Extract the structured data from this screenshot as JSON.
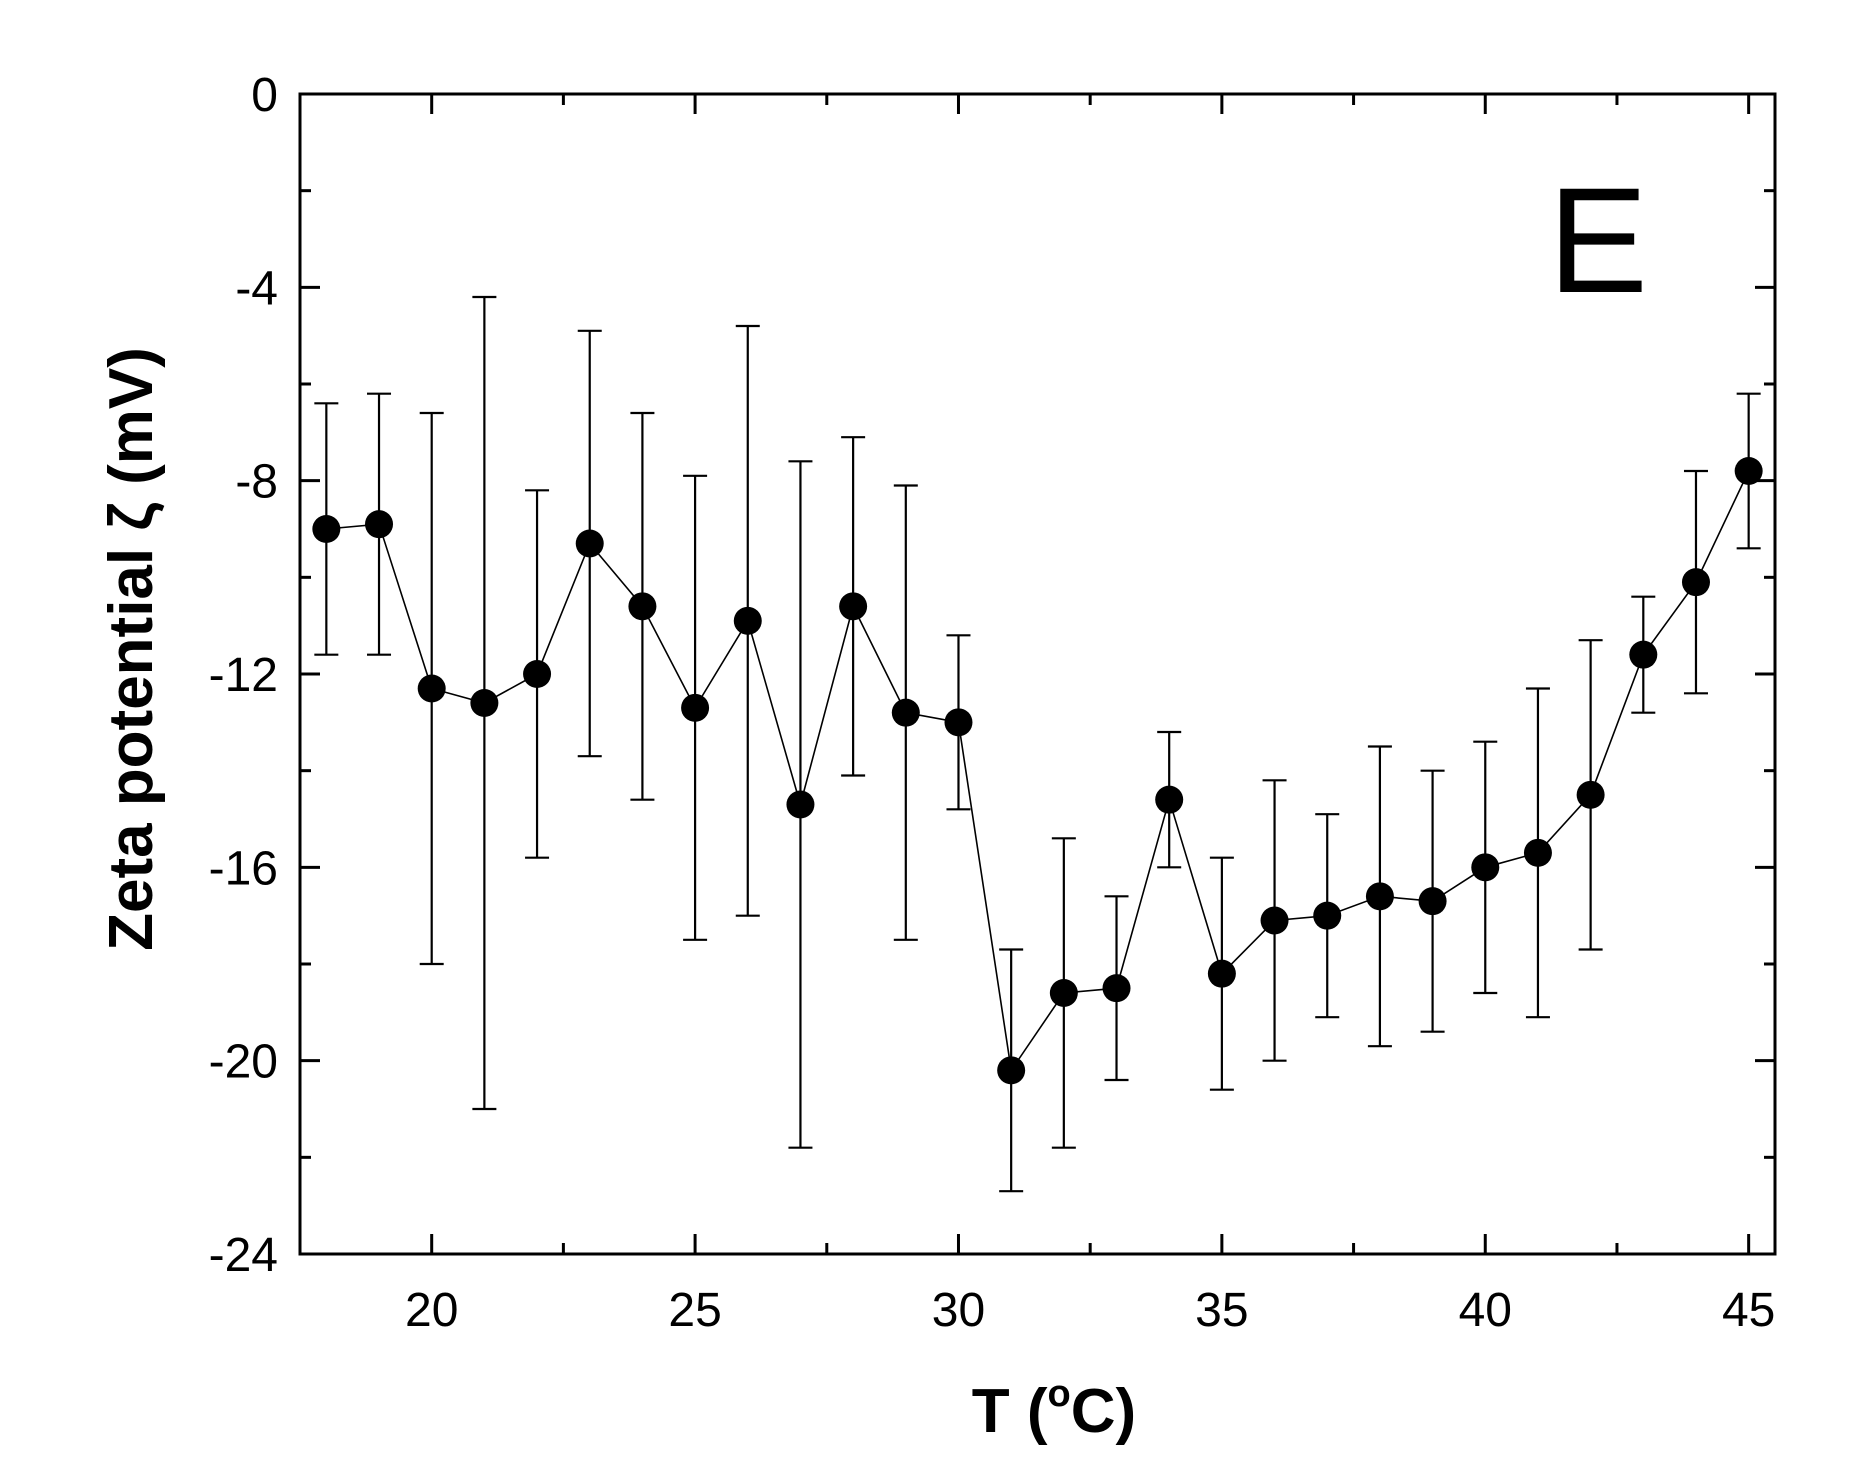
{
  "chart_data": {
    "type": "scatter",
    "panel_label": "E",
    "xlabel": "T (°C)",
    "xlabel_parts": {
      "main": "T (",
      "superscript": "o",
      "unit": "C)"
    },
    "ylabel": "Zeta potential ζ (mV)",
    "xlim": [
      17.5,
      45.5
    ],
    "ylim": [
      -24,
      0
    ],
    "x_ticks": [
      20,
      25,
      30,
      35,
      40,
      45
    ],
    "x_tick_labels": [
      "20",
      "25",
      "30",
      "35",
      "40",
      "45"
    ],
    "y_ticks": [
      0,
      -4,
      -8,
      -12,
      -16,
      -20,
      -24
    ],
    "y_tick_labels": [
      "0",
      "-4",
      "-8",
      "-12",
      "-16",
      "-20",
      "-24"
    ],
    "grid": false,
    "marker": "filled-circle",
    "connected": true,
    "color": "#000000",
    "points": [
      {
        "x": 18,
        "y": -9.0,
        "err": 2.6
      },
      {
        "x": 19,
        "y": -8.9,
        "err": 2.7
      },
      {
        "x": 20,
        "y": -12.3,
        "err": 5.7
      },
      {
        "x": 21,
        "y": -12.6,
        "err": 8.4
      },
      {
        "x": 22,
        "y": -12.0,
        "err": 3.8
      },
      {
        "x": 23,
        "y": -9.3,
        "err": 4.4
      },
      {
        "x": 24,
        "y": -10.6,
        "err": 4.0
      },
      {
        "x": 25,
        "y": -12.7,
        "err": 4.8
      },
      {
        "x": 26,
        "y": -10.9,
        "err": 6.1
      },
      {
        "x": 27,
        "y": -14.7,
        "err": 7.1
      },
      {
        "x": 28,
        "y": -10.6,
        "err": 3.5
      },
      {
        "x": 29,
        "y": -12.8,
        "err": 4.7
      },
      {
        "x": 30,
        "y": -13.0,
        "err": 1.8
      },
      {
        "x": 31,
        "y": -20.2,
        "err": 2.5
      },
      {
        "x": 32,
        "y": -18.6,
        "err": 3.2
      },
      {
        "x": 33,
        "y": -18.5,
        "err": 1.9
      },
      {
        "x": 34,
        "y": -14.6,
        "err": 1.4
      },
      {
        "x": 35,
        "y": -18.2,
        "err": 2.4
      },
      {
        "x": 36,
        "y": -17.1,
        "err": 2.9
      },
      {
        "x": 37,
        "y": -17.0,
        "err": 2.1
      },
      {
        "x": 38,
        "y": -16.6,
        "err": 3.1
      },
      {
        "x": 39,
        "y": -16.7,
        "err": 2.7
      },
      {
        "x": 40,
        "y": -16.0,
        "err": 2.6
      },
      {
        "x": 41,
        "y": -15.7,
        "err": 3.4
      },
      {
        "x": 42,
        "y": -14.5,
        "err": 3.2
      },
      {
        "x": 43,
        "y": -11.6,
        "err": 1.2
      },
      {
        "x": 44,
        "y": -10.1,
        "err": 2.3
      },
      {
        "x": 45,
        "y": -7.8,
        "err": 1.6
      }
    ]
  }
}
